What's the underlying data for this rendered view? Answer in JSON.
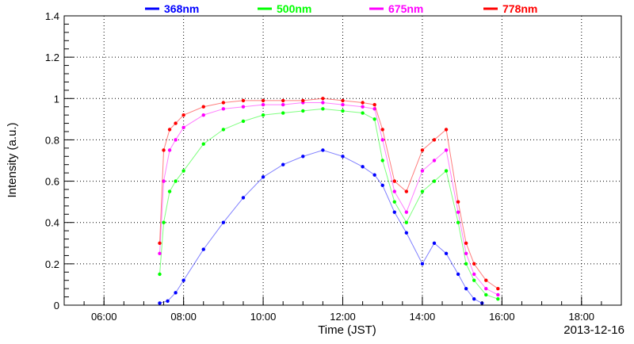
{
  "chart_data": {
    "type": "scatter",
    "title": "",
    "xlabel": "Time (JST)",
    "ylabel": "Intensity (a.u.)",
    "date_label": "2013-12-16",
    "xlim": [
      5.0,
      19.0
    ],
    "ylim": [
      0,
      1.4
    ],
    "x_ticks": [
      "06:00",
      "08:00",
      "10:00",
      "12:00",
      "14:00",
      "16:00",
      "18:00"
    ],
    "y_ticks": [
      "0",
      "0.2",
      "0.4",
      "0.6",
      "0.8",
      "1",
      "1.2",
      "1.4"
    ],
    "grid": true,
    "legend_position": "top",
    "series": [
      {
        "name": "368nm",
        "color": "#0000ff",
        "x": [
          7.4,
          7.6,
          7.8,
          8.0,
          8.5,
          9.0,
          9.5,
          10.0,
          10.5,
          11.0,
          11.5,
          12.0,
          12.5,
          12.8,
          13.0,
          13.3,
          13.6,
          14.0,
          14.3,
          14.6,
          14.9,
          15.1,
          15.3,
          15.5
        ],
        "y": [
          0.01,
          0.02,
          0.06,
          0.12,
          0.27,
          0.4,
          0.52,
          0.62,
          0.68,
          0.72,
          0.75,
          0.72,
          0.67,
          0.63,
          0.58,
          0.45,
          0.35,
          0.2,
          0.3,
          0.25,
          0.15,
          0.08,
          0.03,
          0.01
        ]
      },
      {
        "name": "500nm",
        "color": "#00ff00",
        "x": [
          7.4,
          7.5,
          7.65,
          7.8,
          8.0,
          8.5,
          9.0,
          9.5,
          10.0,
          10.5,
          11.0,
          11.5,
          12.0,
          12.5,
          12.8,
          13.0,
          13.3,
          13.6,
          14.0,
          14.3,
          14.6,
          14.9,
          15.1,
          15.3,
          15.6,
          15.9
        ],
        "y": [
          0.15,
          0.4,
          0.55,
          0.6,
          0.65,
          0.78,
          0.85,
          0.89,
          0.92,
          0.93,
          0.94,
          0.95,
          0.94,
          0.93,
          0.9,
          0.7,
          0.5,
          0.4,
          0.55,
          0.6,
          0.65,
          0.4,
          0.2,
          0.12,
          0.05,
          0.03
        ]
      },
      {
        "name": "675nm",
        "color": "#ff00ff",
        "x": [
          7.4,
          7.5,
          7.65,
          7.8,
          8.0,
          8.5,
          9.0,
          9.5,
          10.0,
          10.5,
          11.0,
          11.5,
          12.0,
          12.5,
          12.8,
          13.0,
          13.3,
          13.6,
          14.0,
          14.3,
          14.6,
          14.9,
          15.1,
          15.3,
          15.6,
          15.9
        ],
        "y": [
          0.25,
          0.6,
          0.75,
          0.8,
          0.86,
          0.92,
          0.95,
          0.96,
          0.97,
          0.97,
          0.98,
          0.98,
          0.97,
          0.96,
          0.95,
          0.8,
          0.55,
          0.45,
          0.65,
          0.7,
          0.75,
          0.45,
          0.25,
          0.15,
          0.08,
          0.05
        ]
      },
      {
        "name": "778nm",
        "color": "#ff0000",
        "x": [
          7.4,
          7.5,
          7.65,
          7.8,
          8.0,
          8.5,
          9.0,
          9.5,
          10.0,
          10.5,
          11.0,
          11.5,
          12.0,
          12.5,
          12.8,
          13.0,
          13.3,
          13.6,
          14.0,
          14.3,
          14.6,
          14.9,
          15.1,
          15.3,
          15.6,
          15.9
        ],
        "y": [
          0.3,
          0.75,
          0.85,
          0.88,
          0.92,
          0.96,
          0.98,
          0.99,
          0.99,
          0.99,
          0.99,
          1.0,
          0.99,
          0.98,
          0.97,
          0.85,
          0.6,
          0.55,
          0.75,
          0.8,
          0.85,
          0.5,
          0.3,
          0.2,
          0.12,
          0.08
        ]
      }
    ]
  }
}
